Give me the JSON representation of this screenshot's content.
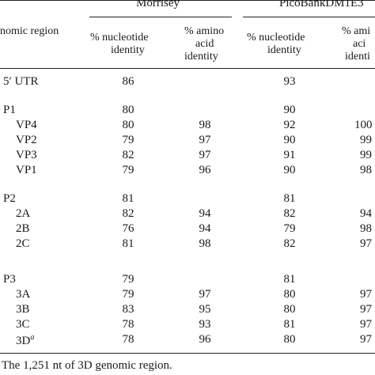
{
  "header": {
    "region_label": "nomic region",
    "group1": "Morrisey",
    "group2": "PicoBankDM1E3",
    "nt_line1": "% nucleotide",
    "nt_line2": "identity",
    "aa_line1": "% amino",
    "aa_line2": "acid",
    "aa_line3": "identity",
    "aa2_line1": "% ami",
    "aa2_line2": "aci",
    "aa2_line3": "identi"
  },
  "rows": [
    {
      "region": "5′ UTR",
      "m_nt": "86",
      "m_aa": "",
      "p_nt": "93",
      "p_aa": ""
    },
    {
      "region": "P1",
      "m_nt": "80",
      "m_aa": "",
      "p_nt": "90",
      "p_aa": ""
    },
    {
      "region": "VP4",
      "m_nt": "80",
      "m_aa": "98",
      "p_nt": "92",
      "p_aa": "100"
    },
    {
      "region": "VP2",
      "m_nt": "79",
      "m_aa": "97",
      "p_nt": "90",
      "p_aa": "99"
    },
    {
      "region": "VP3",
      "m_nt": "82",
      "m_aa": "97",
      "p_nt": "91",
      "p_aa": "99"
    },
    {
      "region": "VP1",
      "m_nt": "79",
      "m_aa": "96",
      "p_nt": "90",
      "p_aa": "98"
    },
    {
      "region": "P2",
      "m_nt": "81",
      "m_aa": "",
      "p_nt": "81",
      "p_aa": ""
    },
    {
      "region": "2A",
      "m_nt": "82",
      "m_aa": "94",
      "p_nt": "82",
      "p_aa": "94"
    },
    {
      "region": "2B",
      "m_nt": "76",
      "m_aa": "94",
      "p_nt": "79",
      "p_aa": "98"
    },
    {
      "region": "2C",
      "m_nt": "81",
      "m_aa": "98",
      "p_nt": "82",
      "p_aa": "97"
    },
    {
      "region": "P3",
      "m_nt": "79",
      "m_aa": "",
      "p_nt": "81",
      "p_aa": ""
    },
    {
      "region": "3A",
      "m_nt": "79",
      "m_aa": "97",
      "p_nt": "80",
      "p_aa": "97"
    },
    {
      "region": "3B",
      "m_nt": "83",
      "m_aa": "95",
      "p_nt": "80",
      "p_aa": "97"
    },
    {
      "region": "3C",
      "m_nt": "78",
      "m_aa": "93",
      "p_nt": "81",
      "p_aa": "97"
    },
    {
      "region": "3D",
      "region_sup": "a",
      "m_nt": "78",
      "m_aa": "96",
      "p_nt": "80",
      "p_aa": "97"
    }
  ],
  "footnote": "The 1,251 nt of 3D genomic region."
}
